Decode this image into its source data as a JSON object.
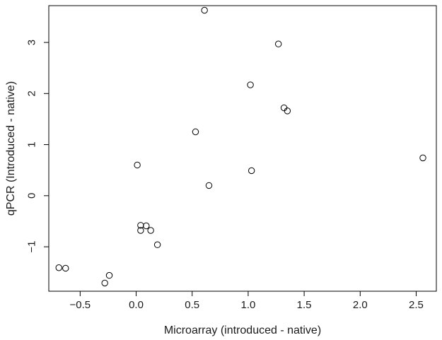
{
  "chart_data": {
    "type": "scatter",
    "title": "",
    "xlabel": "Microarray (introduced - native)",
    "ylabel": "qPCR (Introduced - native)",
    "xlim": [
      -0.78,
      2.68
    ],
    "ylim": [
      -1.87,
      3.72
    ],
    "xticks": [
      -0.5,
      0.0,
      0.5,
      1.0,
      1.5,
      2.0,
      2.5
    ],
    "xtick_labels": [
      "−0.5",
      "0.0",
      "0.5",
      "1.0",
      "1.5",
      "2.0",
      "2.5"
    ],
    "yticks": [
      -1,
      0,
      1,
      2,
      3
    ],
    "ytick_labels": [
      "−1",
      "0",
      "1",
      "2",
      "3"
    ],
    "grid": false,
    "legend": "none",
    "marker": "open-circle",
    "color": "#000000",
    "points": [
      {
        "x": 0.61,
        "y": 3.63
      },
      {
        "x": 1.27,
        "y": 2.97
      },
      {
        "x": 1.02,
        "y": 2.17
      },
      {
        "x": 1.32,
        "y": 1.72
      },
      {
        "x": 1.35,
        "y": 1.66
      },
      {
        "x": 0.53,
        "y": 1.25
      },
      {
        "x": 2.56,
        "y": 0.74
      },
      {
        "x": 0.01,
        "y": 0.6
      },
      {
        "x": 1.03,
        "y": 0.49
      },
      {
        "x": 0.65,
        "y": 0.2
      },
      {
        "x": 0.04,
        "y": -0.58
      },
      {
        "x": 0.09,
        "y": -0.59
      },
      {
        "x": 0.04,
        "y": -0.68
      },
      {
        "x": 0.13,
        "y": -0.68
      },
      {
        "x": 0.19,
        "y": -0.96
      },
      {
        "x": -0.69,
        "y": -1.41
      },
      {
        "x": -0.63,
        "y": -1.42
      },
      {
        "x": -0.24,
        "y": -1.56
      },
      {
        "x": -0.28,
        "y": -1.71
      }
    ]
  }
}
